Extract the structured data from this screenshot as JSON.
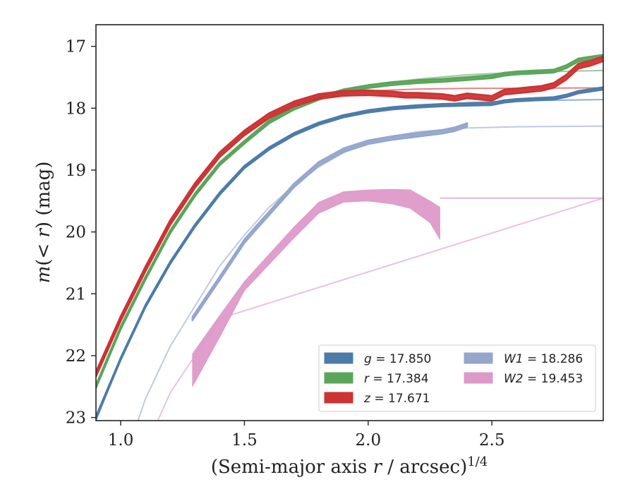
{
  "chart_data": {
    "type": "line",
    "xlabel": "(Semi-major axis r / arcsec)^1/4",
    "ylabel": "m(< r) (mag)",
    "xlim": [
      0.9,
      2.95
    ],
    "ylim": [
      23.05,
      16.65
    ],
    "y_inverted": true,
    "x_ticks": [
      "1.0",
      "1.5",
      "2.0",
      "2.5"
    ],
    "x_tick_values": [
      1.0,
      1.5,
      2.0,
      2.5
    ],
    "y_ticks": [
      "17",
      "18",
      "19",
      "20",
      "21",
      "22",
      "23"
    ],
    "y_tick_values": [
      17,
      18,
      19,
      20,
      21,
      22,
      23
    ],
    "grid": false,
    "legend_position": "lower-right",
    "legend_columns": 2,
    "series": [
      {
        "name": "g = 17.850",
        "label_var": "g",
        "label_val": "17.850",
        "color": "#4c7ba8",
        "asymptote": 17.85,
        "model": [
          [
            0.9,
            23.05
          ],
          [
            1.0,
            22.05
          ],
          [
            1.1,
            21.2
          ],
          [
            1.2,
            20.5
          ],
          [
            1.3,
            19.9
          ],
          [
            1.4,
            19.38
          ],
          [
            1.5,
            18.95
          ],
          [
            1.6,
            18.65
          ],
          [
            1.7,
            18.42
          ],
          [
            1.8,
            18.25
          ],
          [
            1.9,
            18.13
          ],
          [
            2.0,
            18.05
          ],
          [
            2.2,
            17.96
          ],
          [
            2.4,
            17.91
          ],
          [
            2.6,
            17.88
          ],
          [
            2.95,
            17.86
          ]
        ],
        "data": [
          [
            0.9,
            23.0
          ],
          [
            1.0,
            22.05
          ],
          [
            1.1,
            21.2
          ],
          [
            1.2,
            20.5
          ],
          [
            1.3,
            19.9
          ],
          [
            1.4,
            19.38
          ],
          [
            1.5,
            18.95
          ],
          [
            1.6,
            18.65
          ],
          [
            1.7,
            18.42
          ],
          [
            1.8,
            18.25
          ],
          [
            1.9,
            18.13
          ],
          [
            2.0,
            18.05
          ],
          [
            2.1,
            18.0
          ],
          [
            2.2,
            17.97
          ],
          [
            2.3,
            17.95
          ],
          [
            2.4,
            17.94
          ],
          [
            2.5,
            17.93
          ],
          [
            2.55,
            17.89
          ],
          [
            2.6,
            17.87
          ],
          [
            2.7,
            17.85
          ],
          [
            2.75,
            17.84
          ],
          [
            2.8,
            17.8
          ],
          [
            2.85,
            17.74
          ],
          [
            2.9,
            17.71
          ],
          [
            2.95,
            17.68
          ]
        ],
        "band": 0.04
      },
      {
        "name": "r = 17.384",
        "label_var": "r",
        "label_val": "17.384",
        "color": "#5aa55a",
        "asymptote": 17.384,
        "model": [
          [
            0.9,
            22.5
          ],
          [
            1.0,
            21.55
          ],
          [
            1.1,
            20.75
          ],
          [
            1.2,
            20.0
          ],
          [
            1.3,
            19.4
          ],
          [
            1.4,
            18.9
          ],
          [
            1.5,
            18.55
          ],
          [
            1.6,
            18.22
          ],
          [
            1.7,
            18.0
          ],
          [
            1.8,
            17.84
          ],
          [
            1.9,
            17.72
          ],
          [
            2.0,
            17.63
          ],
          [
            2.2,
            17.53
          ],
          [
            2.4,
            17.46
          ],
          [
            2.6,
            17.42
          ],
          [
            2.95,
            17.39
          ]
        ],
        "data": [
          [
            0.9,
            22.5
          ],
          [
            1.0,
            21.55
          ],
          [
            1.1,
            20.75
          ],
          [
            1.2,
            20.0
          ],
          [
            1.3,
            19.4
          ],
          [
            1.4,
            18.9
          ],
          [
            1.5,
            18.55
          ],
          [
            1.6,
            18.22
          ],
          [
            1.7,
            18.0
          ],
          [
            1.8,
            17.84
          ],
          [
            1.9,
            17.72
          ],
          [
            2.0,
            17.65
          ],
          [
            2.1,
            17.6
          ],
          [
            2.2,
            17.57
          ],
          [
            2.3,
            17.55
          ],
          [
            2.4,
            17.52
          ],
          [
            2.5,
            17.49
          ],
          [
            2.55,
            17.45
          ],
          [
            2.6,
            17.43
          ],
          [
            2.7,
            17.41
          ],
          [
            2.75,
            17.4
          ],
          [
            2.8,
            17.33
          ],
          [
            2.85,
            17.22
          ],
          [
            2.9,
            17.19
          ],
          [
            2.95,
            17.16
          ]
        ],
        "band": 0.05
      },
      {
        "name": "z = 17.671",
        "label_var": "z",
        "label_val": "17.671",
        "color": "#cc3333",
        "asymptote": 17.671,
        "model": [
          [
            0.9,
            22.3
          ],
          [
            1.0,
            21.4
          ],
          [
            1.1,
            20.6
          ],
          [
            1.2,
            19.85
          ],
          [
            1.3,
            19.25
          ],
          [
            1.4,
            18.75
          ],
          [
            1.5,
            18.4
          ],
          [
            1.6,
            18.12
          ],
          [
            1.7,
            17.93
          ],
          [
            1.8,
            17.81
          ],
          [
            1.9,
            17.76
          ],
          [
            2.0,
            17.72
          ],
          [
            2.2,
            17.69
          ],
          [
            2.4,
            17.68
          ],
          [
            2.95,
            17.671
          ]
        ],
        "data": [
          [
            0.9,
            22.3
          ],
          [
            1.0,
            21.4
          ],
          [
            1.1,
            20.6
          ],
          [
            1.2,
            19.85
          ],
          [
            1.3,
            19.25
          ],
          [
            1.4,
            18.75
          ],
          [
            1.5,
            18.4
          ],
          [
            1.6,
            18.12
          ],
          [
            1.7,
            17.93
          ],
          [
            1.8,
            17.81
          ],
          [
            1.9,
            17.76
          ],
          [
            2.0,
            17.75
          ],
          [
            2.1,
            17.77
          ],
          [
            2.15,
            17.79
          ],
          [
            2.2,
            17.79
          ],
          [
            2.3,
            17.81
          ],
          [
            2.35,
            17.84
          ],
          [
            2.4,
            17.8
          ],
          [
            2.45,
            17.82
          ],
          [
            2.5,
            17.84
          ],
          [
            2.55,
            17.74
          ],
          [
            2.6,
            17.72
          ],
          [
            2.65,
            17.7
          ],
          [
            2.7,
            17.68
          ],
          [
            2.75,
            17.63
          ],
          [
            2.8,
            17.5
          ],
          [
            2.85,
            17.32
          ],
          [
            2.9,
            17.27
          ],
          [
            2.95,
            17.2
          ]
        ],
        "band": 0.08
      },
      {
        "name": "W1 = 18.286",
        "label_var": "W1",
        "label_val": "18.286",
        "color": "#94a6cc",
        "asymptote": 18.286,
        "model": [
          [
            1.07,
            23.05
          ],
          [
            1.1,
            22.7
          ],
          [
            1.2,
            21.85
          ],
          [
            1.3,
            21.2
          ],
          [
            1.4,
            20.55
          ],
          [
            1.5,
            20.05
          ],
          [
            1.6,
            19.6
          ],
          [
            1.7,
            19.25
          ],
          [
            1.8,
            18.95
          ],
          [
            1.9,
            18.72
          ],
          [
            2.0,
            18.55
          ],
          [
            2.1,
            18.45
          ],
          [
            2.2,
            18.38
          ],
          [
            2.4,
            18.32
          ],
          [
            2.6,
            18.3
          ],
          [
            2.95,
            18.29
          ]
        ],
        "data": [
          [
            1.29,
            21.4
          ],
          [
            1.4,
            20.75
          ],
          [
            1.5,
            20.15
          ],
          [
            1.55,
            19.92
          ],
          [
            1.6,
            19.7
          ],
          [
            1.7,
            19.25
          ],
          [
            1.8,
            18.9
          ],
          [
            1.9,
            18.68
          ],
          [
            2.0,
            18.55
          ],
          [
            2.1,
            18.48
          ],
          [
            2.2,
            18.43
          ],
          [
            2.3,
            18.38
          ],
          [
            2.35,
            18.34
          ],
          [
            2.4,
            18.27
          ]
        ],
        "band": 0.06
      },
      {
        "name": "W2 = 19.453",
        "label_var": "W2",
        "label_val": "19.453",
        "color": "#dd99c8",
        "asymptote": 19.453,
        "model": [
          [
            1.15,
            23.05
          ],
          [
            1.2,
            22.6
          ],
          [
            1.3,
            22.0
          ],
          [
            1.4,
            21.4
          ]
        ],
        "data_upper": [
          [
            1.29,
            21.97
          ],
          [
            1.4,
            21.35
          ],
          [
            1.5,
            20.8
          ],
          [
            1.7,
            19.92
          ],
          [
            1.8,
            19.52
          ],
          [
            1.9,
            19.35
          ],
          [
            2.0,
            19.32
          ],
          [
            2.1,
            19.31
          ],
          [
            2.17,
            19.32
          ],
          [
            2.25,
            19.5
          ],
          [
            2.29,
            19.6
          ]
        ],
        "data_lower": [
          [
            1.29,
            22.5
          ],
          [
            1.4,
            21.7
          ],
          [
            1.5,
            20.95
          ],
          [
            1.7,
            20.1
          ],
          [
            1.8,
            19.7
          ],
          [
            1.9,
            19.52
          ],
          [
            2.0,
            19.5
          ],
          [
            2.1,
            19.55
          ],
          [
            2.17,
            19.62
          ],
          [
            2.25,
            19.85
          ],
          [
            2.29,
            20.12
          ]
        ]
      }
    ]
  }
}
